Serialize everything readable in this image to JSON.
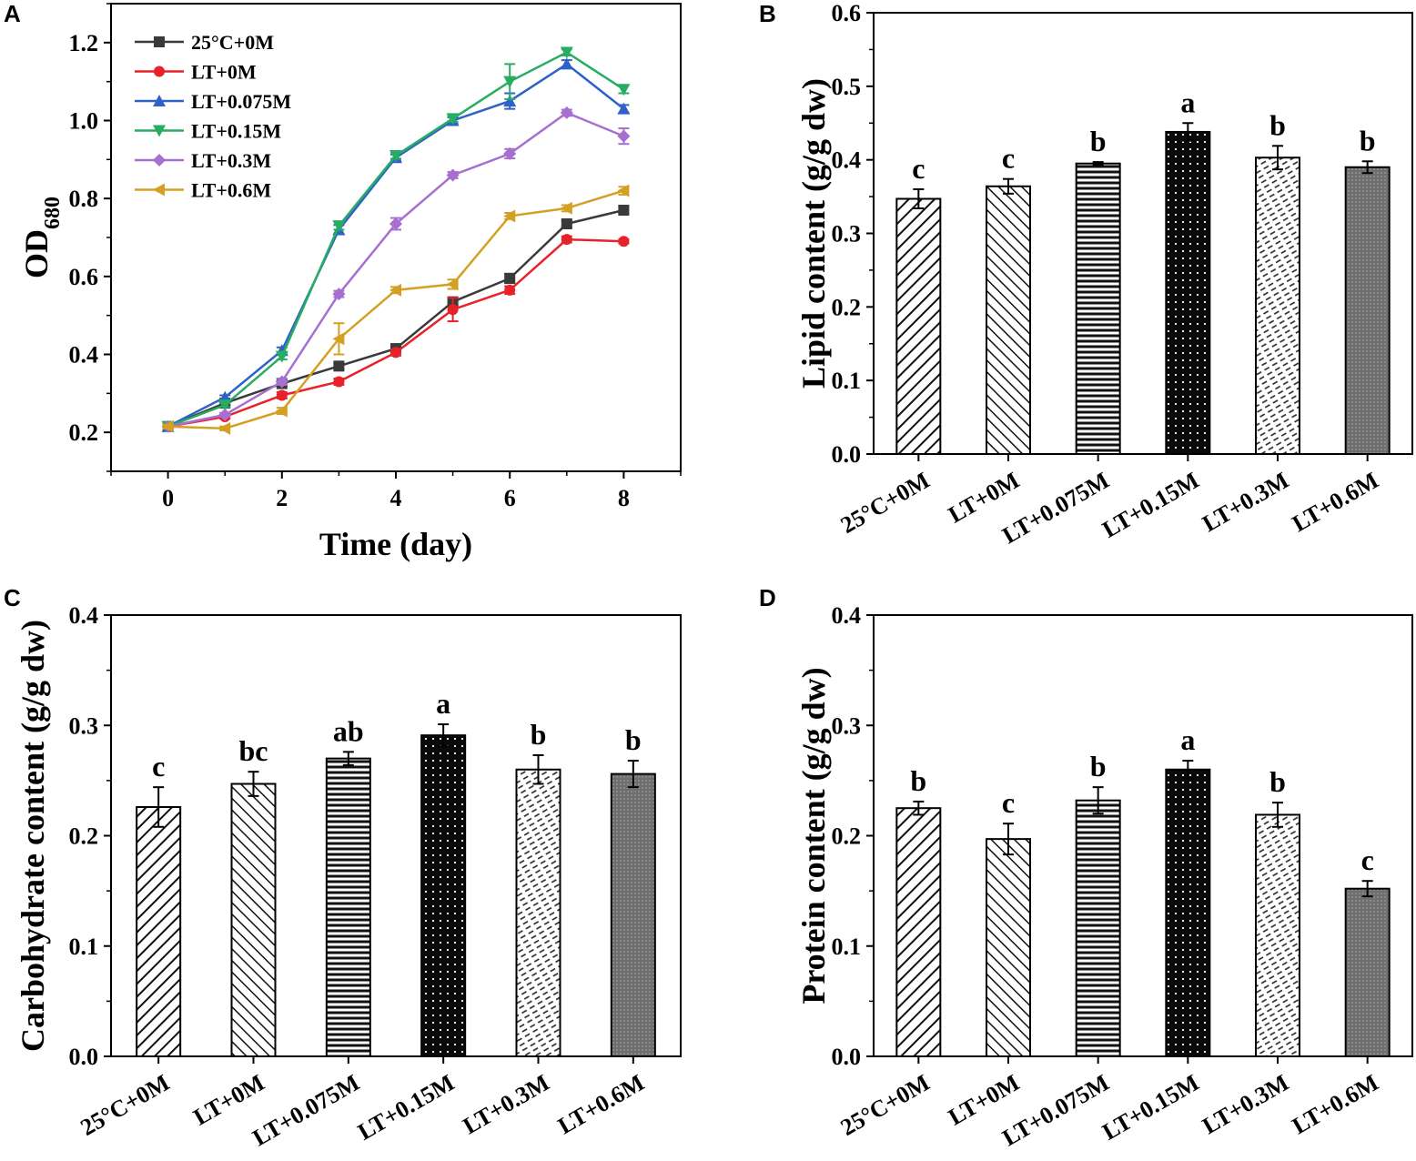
{
  "colors": {
    "25C": "#3a3a3a",
    "LT0": "#e8222a",
    "LT075": "#2f62c8",
    "LT015": "#27ad62",
    "LT03": "#a66fd0",
    "LT06": "#d4a024"
  },
  "chart_data": [
    {
      "panel": "A",
      "type": "line",
      "xlabel": "Time (day)",
      "ylabel": "OD",
      "ylabel_sub": "680",
      "xlim": [
        -1,
        9
      ],
      "ylim": [
        0.1,
        1.3
      ],
      "xticks": [
        "0",
        "2",
        "4",
        "6",
        "8"
      ],
      "yticks": [
        "0.2",
        "0.4",
        "0.6",
        "0.8",
        "1.0",
        "1.2"
      ],
      "x": [
        0,
        1,
        2,
        3,
        4,
        5,
        6,
        7,
        8
      ],
      "series": [
        {
          "name": "25°C+0M",
          "color_key": "25C",
          "marker": "square",
          "values": [
            0.215,
            0.275,
            0.325,
            0.37,
            0.415,
            0.535,
            0.595,
            0.735,
            0.77
          ],
          "errors": [
            0.005,
            0.005,
            0.005,
            0.008,
            0.008,
            0.01,
            0.012,
            0.008,
            0.01
          ]
        },
        {
          "name": "LT+0M",
          "color_key": "LT0",
          "marker": "circle",
          "values": [
            0.215,
            0.24,
            0.295,
            0.33,
            0.405,
            0.515,
            0.565,
            0.695,
            0.69
          ],
          "errors": [
            0.005,
            0.005,
            0.008,
            0.008,
            0.008,
            0.03,
            0.01,
            0.008,
            0.005
          ]
        },
        {
          "name": "LT+0.075M",
          "color_key": "LT075",
          "marker": "triangle-up",
          "values": [
            0.215,
            0.29,
            0.41,
            0.72,
            0.905,
            1.0,
            1.05,
            1.145,
            1.03
          ],
          "errors": [
            0.005,
            0.005,
            0.008,
            0.012,
            0.008,
            0.008,
            0.02,
            0.01,
            0.01
          ]
        },
        {
          "name": "LT+0.15M",
          "color_key": "LT015",
          "marker": "triangle-down",
          "values": [
            0.215,
            0.27,
            0.395,
            0.73,
            0.91,
            1.005,
            1.1,
            1.175,
            1.08
          ],
          "errors": [
            0.005,
            0.005,
            0.008,
            0.01,
            0.008,
            0.008,
            0.045,
            0.008,
            0.01
          ]
        },
        {
          "name": "LT+0.3M",
          "color_key": "LT03",
          "marker": "diamond",
          "values": [
            0.215,
            0.245,
            0.33,
            0.555,
            0.735,
            0.86,
            0.915,
            1.02,
            0.96
          ],
          "errors": [
            0.005,
            0.005,
            0.008,
            0.008,
            0.015,
            0.008,
            0.012,
            0.008,
            0.02
          ]
        },
        {
          "name": "LT+0.6M",
          "color_key": "LT06",
          "marker": "triangle-left",
          "values": [
            0.215,
            0.21,
            0.255,
            0.44,
            0.565,
            0.58,
            0.755,
            0.775,
            0.82
          ],
          "errors": [
            0.005,
            0.005,
            0.008,
            0.04,
            0.008,
            0.012,
            0.008,
            0.008,
            0.01
          ]
        }
      ]
    },
    {
      "panel": "B",
      "type": "bar",
      "ylabel": "Lipid content (g/g dw)",
      "ylim": [
        0.0,
        0.6
      ],
      "yticks": [
        "0.0",
        "0.1",
        "0.2",
        "0.3",
        "0.4",
        "0.5",
        "0.6"
      ],
      "categories": [
        "25°C+0M",
        "LT+0M",
        "LT+0.075M",
        "LT+0.15M",
        "LT+0.3M",
        "LT+0.6M"
      ],
      "values": [
        0.347,
        0.364,
        0.395,
        0.438,
        0.403,
        0.39
      ],
      "errors": [
        0.013,
        0.01,
        0.002,
        0.012,
        0.016,
        0.008
      ],
      "labels": [
        "c",
        "c",
        "b",
        "a",
        "b",
        "b"
      ]
    },
    {
      "panel": "C",
      "type": "bar",
      "ylabel": "Carbohydrate content (g/g dw)",
      "ylim": [
        0.0,
        0.4
      ],
      "yticks": [
        "0.0",
        "0.1",
        "0.2",
        "0.3",
        "0.4"
      ],
      "categories": [
        "25°C+0M",
        "LT+0M",
        "LT+0.075M",
        "LT+0.15M",
        "LT+0.3M",
        "LT+0.6M"
      ],
      "values": [
        0.226,
        0.247,
        0.27,
        0.291,
        0.26,
        0.256
      ],
      "errors": [
        0.018,
        0.011,
        0.006,
        0.01,
        0.013,
        0.012
      ],
      "labels": [
        "c",
        "bc",
        "ab",
        "a",
        "b",
        "b"
      ]
    },
    {
      "panel": "D",
      "type": "bar",
      "ylabel": "Protein content (g/g dw)",
      "ylim": [
        0.0,
        0.4
      ],
      "yticks": [
        "0.0",
        "0.1",
        "0.2",
        "0.3",
        "0.4"
      ],
      "categories": [
        "25°C+0M",
        "LT+0M",
        "LT+0.075M",
        "LT+0.15M",
        "LT+0.3M",
        "LT+0.6M"
      ],
      "values": [
        0.225,
        0.197,
        0.232,
        0.26,
        0.219,
        0.152
      ],
      "errors": [
        0.006,
        0.014,
        0.012,
        0.008,
        0.011,
        0.007
      ],
      "labels": [
        "b",
        "c",
        "b",
        "a",
        "b",
        "c"
      ]
    }
  ]
}
